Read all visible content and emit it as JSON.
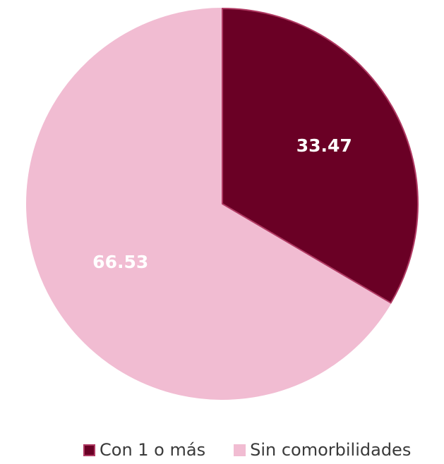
{
  "chart_data": {
    "type": "pie",
    "title": "",
    "start_angle_deg": 0,
    "direction": "clockwise",
    "slices": [
      {
        "name": "Con 1 o más",
        "value": 33.47,
        "label": "33.47",
        "color": "#6a0025",
        "stroke": "#b03a63"
      },
      {
        "name": "Sin comorbilidades",
        "value": 66.53,
        "label": "66.53",
        "color": "#f1bcd2",
        "stroke": "#f1bcd2"
      }
    ],
    "legend_position": "bottom-right"
  }
}
